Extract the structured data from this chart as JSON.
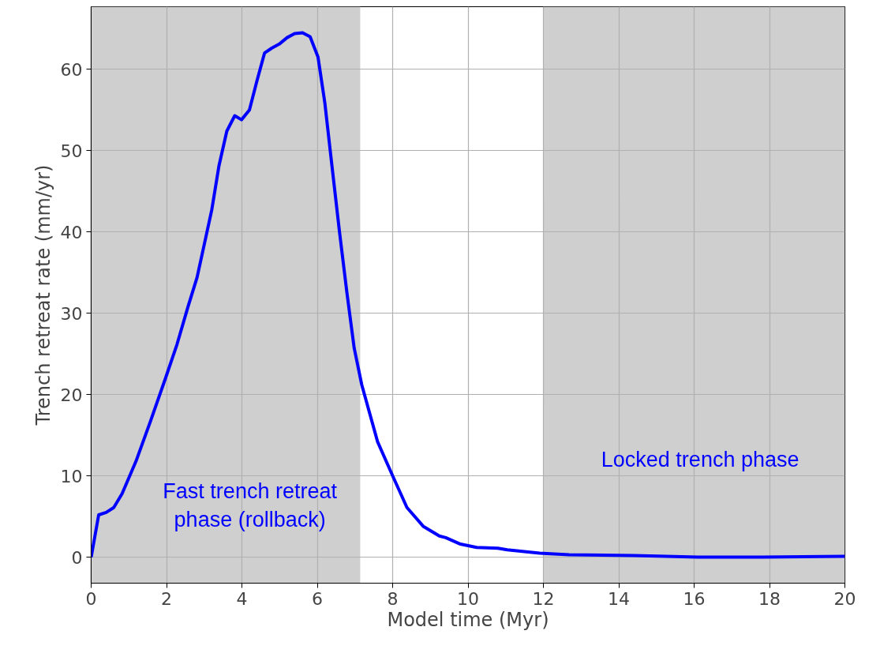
{
  "chart_data": {
    "type": "line",
    "xlabel": "Model time (Myr)",
    "ylabel": "Trench retreat rate (mm/yr)",
    "x": [
      0,
      0.2,
      0.4,
      0.6,
      0.82,
      1.19,
      1.58,
      1.98,
      2.28,
      2.57,
      2.81,
      3.2,
      3.39,
      3.6,
      3.81,
      3.99,
      4.2,
      4.4,
      4.6,
      4.79,
      4.99,
      5.2,
      5.4,
      5.61,
      5.81,
      6.02,
      6.2,
      6.39,
      6.59,
      6.79,
      6.98,
      7.18,
      7.6,
      7.99,
      8.38,
      8.81,
      9.24,
      9.41,
      9.8,
      10.23,
      10.79,
      11.04,
      11.9,
      12.68,
      14.4,
      16.1,
      17.8,
      20
    ],
    "series": [
      {
        "color": "#0000ff",
        "values": [
          0,
          5.2,
          5.5,
          6.1,
          7.8,
          11.8,
          16.8,
          22.1,
          26.2,
          30.8,
          34.4,
          42.7,
          48.1,
          52.4,
          54.3,
          53.8,
          55.0,
          58.6,
          62.0,
          62.6,
          63.1,
          63.9,
          64.4,
          64.5,
          64.0,
          61.5,
          55.9,
          48.1,
          40.0,
          32.4,
          25.7,
          21.2,
          14.2,
          10.1,
          6.1,
          3.8,
          2.6,
          2.4,
          1.6,
          1.2,
          1.1,
          0.9,
          0.5,
          0.3,
          0.2,
          0,
          0,
          0.1
        ]
      }
    ],
    "xlim": [
      0,
      20
    ],
    "xticks": [
      0,
      2,
      4,
      6,
      8,
      10,
      12,
      14,
      16,
      18,
      20
    ],
    "ylim": [
      -3.2,
      67.7
    ],
    "yticks": [
      0,
      10,
      20,
      30,
      40,
      50,
      60
    ],
    "grid": true,
    "marker": "none",
    "line_style": "solid",
    "bands": [
      {
        "axis": "x",
        "from": 0,
        "to": 7.14,
        "label": null,
        "color": "#cfcfcf"
      },
      {
        "axis": "x",
        "from": 12,
        "to": 20,
        "label": null,
        "color": "#cfcfcf"
      }
    ],
    "annotations": [
      "Fast trench retreat\nphase (rollback)",
      "Locked trench phase"
    ]
  }
}
